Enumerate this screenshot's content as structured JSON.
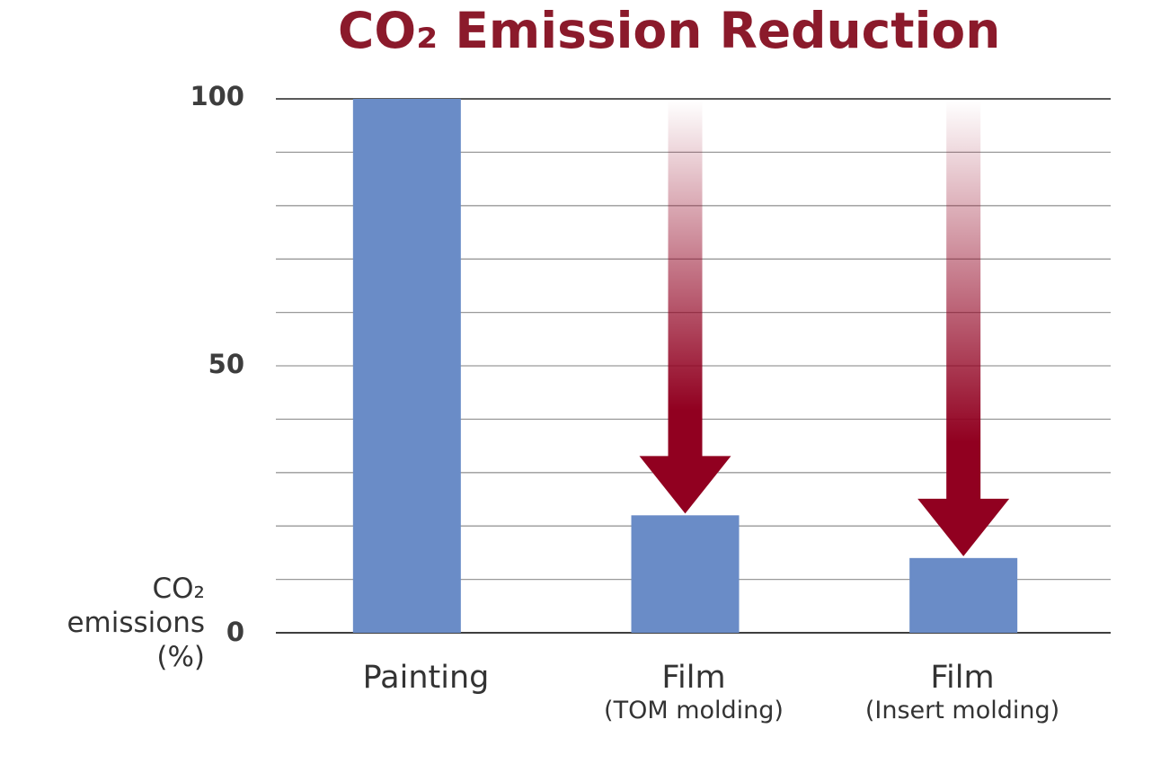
{
  "chart_data": {
    "type": "bar",
    "title": "CO₂ Emission Reduction",
    "ylabel": [
      "CO₂",
      "emissions",
      "(%)"
    ],
    "ylim": [
      0,
      100
    ],
    "yticks": [
      "100",
      "50",
      "0"
    ],
    "grid": true,
    "categories": [
      {
        "label": "Painting",
        "sublabel": ""
      },
      {
        "label": "Film",
        "sublabel": "(TOM molding)"
      },
      {
        "label": "Film",
        "sublabel": "(Insert molding)"
      }
    ],
    "values": [
      100,
      22,
      14
    ],
    "annotations": [
      "reduction-arrow",
      "reduction-arrow"
    ],
    "colors": {
      "bar": "#6a8cc7",
      "arrow": "#910020",
      "title": "#8b1a2b",
      "grid": "#9a9a9a",
      "axis": "#222222"
    }
  }
}
